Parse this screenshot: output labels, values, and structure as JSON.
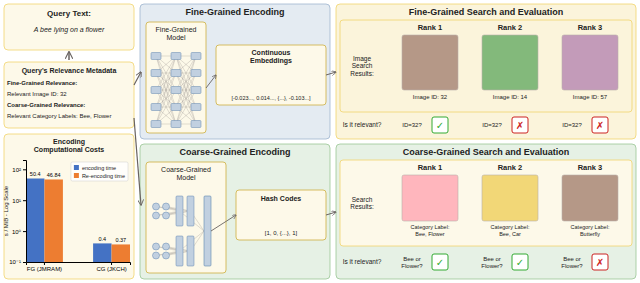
{
  "chart_data": {
    "type": "bar",
    "title": "Encoding\nComputational Costs",
    "categories": [
      "FG (JMRAM)",
      "CG (JKCH)"
    ],
    "series": [
      {
        "name": "encoding time",
        "color": "#4472c4",
        "values": [
          50.4,
          0.4
        ]
      },
      {
        "name": "Re-encoding time",
        "color": "#ed7d31",
        "values": [
          46.84,
          0.37
        ]
      }
    ],
    "y_label": "s / MiB - Log Scale",
    "log": "y",
    "ylim": [
      0.1,
      200
    ],
    "yticks": [
      {
        "value": 0.1,
        "label": "10⁻¹"
      },
      {
        "value": 1,
        "label": "10⁰"
      },
      {
        "value": 10,
        "label": "10¹"
      },
      {
        "value": 100,
        "label": "10²"
      }
    ],
    "grid": false,
    "legend": "upper right",
    "data_labels": true,
    "annotations": [
      {
        "text": "Query Text:"
      },
      {
        "text": "A bee lying on a flower"
      },
      {
        "text": "Query's Relevance Metadata"
      },
      {
        "text": "Fine-Grained Relevance:"
      },
      {
        "text": "Relevant Image ID: 32"
      },
      {
        "text": "Coarse-Grained Relevance:"
      },
      {
        "text": "Relevant Category Labels: Bee, Flower"
      },
      {
        "text": "Fine-Grained Encoding"
      },
      {
        "text": "Fine-Grained\nModel"
      },
      {
        "text": "Continuous\nEmbeddings"
      },
      {
        "text": "[-0.023..., 0.014..., {...}, -0.103...]"
      },
      {
        "text": "Coarse-Grained Encoding"
      },
      {
        "text": "Coarse-Grained\nModel"
      },
      {
        "text": "Hash Codes"
      },
      {
        "text": "[1, 0, {...}, 1]"
      },
      {
        "text": "Fine-Grained Search and Evaluation"
      },
      {
        "text": "Image\nSearch\nResults:"
      },
      {
        "text": "Rank 1"
      },
      {
        "text": "Rank 2"
      },
      {
        "text": "Rank 3"
      },
      {
        "text": "Image ID: 32"
      },
      {
        "text": "Image ID: 14"
      },
      {
        "text": "Image ID: 57"
      },
      {
        "text": "Is it relevant?"
      },
      {
        "text": "ID=32?"
      },
      {
        "text": "ID=32?"
      },
      {
        "text": "ID=32?"
      },
      {
        "text": "✓",
        "color": "#33aa33"
      },
      {
        "text": "✗",
        "color": "#cc2222"
      },
      {
        "text": "✗",
        "color": "#cc2222"
      },
      {
        "text": "Coarse-Grained Search and Evaluation"
      },
      {
        "text": "Search\nResults:"
      },
      {
        "text": "Rank 1"
      },
      {
        "text": "Rank 2"
      },
      {
        "text": "Rank 3"
      },
      {
        "text": "Category Label:\nBee, Flower"
      },
      {
        "text": "Category Label:\nBee, Car"
      },
      {
        "text": "Category Label:\nButterfly"
      },
      {
        "text": "Is it relevant?"
      },
      {
        "text": "Bee or\nFlower?"
      },
      {
        "text": "Bee or\nFlower?"
      },
      {
        "text": "Bee or\nFlower?"
      },
      {
        "text": "✓",
        "color": "#33aa33"
      },
      {
        "text": "✓",
        "color": "#33aa33"
      },
      {
        "text": "✗",
        "color": "#cc2222"
      }
    ]
  }
}
